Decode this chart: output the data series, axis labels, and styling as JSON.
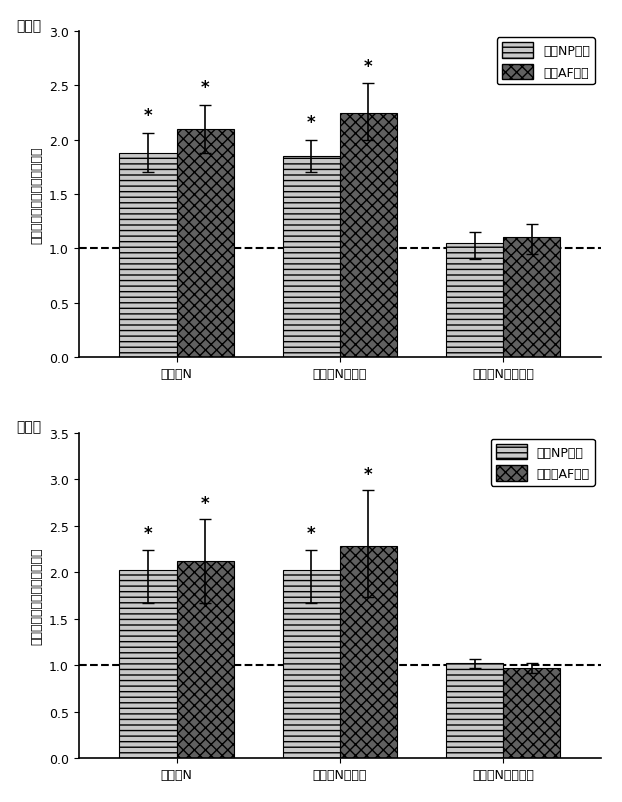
{
  "fig_a": {
    "title": "図５ａ",
    "categories": [
      "リンクN",
      "リンクN１－８",
      "リンクN９－１６"
    ],
    "np_values": [
      1.88,
      1.85,
      1.05
    ],
    "af_values": [
      2.1,
      2.25,
      1.1
    ],
    "np_yerr_upper": [
      0.18,
      0.15,
      0.1
    ],
    "np_yerr_lower": [
      0.18,
      0.15,
      0.15
    ],
    "af_yerr_upper": [
      0.22,
      0.27,
      0.12
    ],
    "af_yerr_lower": [
      0.22,
      0.25,
      0.15
    ],
    "ylim": [
      0,
      3.0
    ],
    "yticks": [
      0,
      0.5,
      1.0,
      1.5,
      2.0,
      2.5,
      3.0
    ],
    "ylabel": "正規化プロテオグリカン合成",
    "legend_labels": [
      "ウシNP細胞",
      "ウシAF細胞"
    ],
    "np_star": [
      true,
      true,
      false
    ],
    "af_star": [
      true,
      true,
      false
    ]
  },
  "fig_b": {
    "title": "図５ｂ",
    "categories": [
      "リンクN",
      "リンクN１－８",
      "リンクN９－１６"
    ],
    "np_values": [
      2.02,
      2.02,
      1.02
    ],
    "af_values": [
      2.12,
      2.28,
      0.97
    ],
    "np_yerr_upper": [
      0.22,
      0.22,
      0.05
    ],
    "np_yerr_lower": [
      0.35,
      0.35,
      0.05
    ],
    "af_yerr_upper": [
      0.45,
      0.6,
      0.05
    ],
    "af_yerr_lower": [
      0.45,
      0.55,
      0.05
    ],
    "ylim": [
      0,
      3.5
    ],
    "yticks": [
      0,
      0.5,
      1.0,
      1.5,
      2.0,
      2.5,
      3.0,
      3.5
    ],
    "ylabel": "正規化プロテオグリカン合成",
    "legend_labels": [
      "ヒトNP細胞",
      "ヒトｉAF細胞"
    ],
    "np_star": [
      true,
      true,
      false
    ],
    "af_star": [
      true,
      true,
      false
    ]
  },
  "bar_width": 0.35,
  "np_color": "#c8c8c8",
  "af_color": "#606060",
  "np_hatch": "///",
  "af_hatch": "xxx",
  "dashed_line_y": 1.0,
  "background_color": "#f0f0f0",
  "font_size_title": 10,
  "font_size_label": 9,
  "font_size_tick": 9,
  "font_size_legend": 9,
  "font_size_star": 12,
  "categories_xtick": [
    "リンクN",
    "リンクN１－８",
    "リンクN９－１６"
  ]
}
